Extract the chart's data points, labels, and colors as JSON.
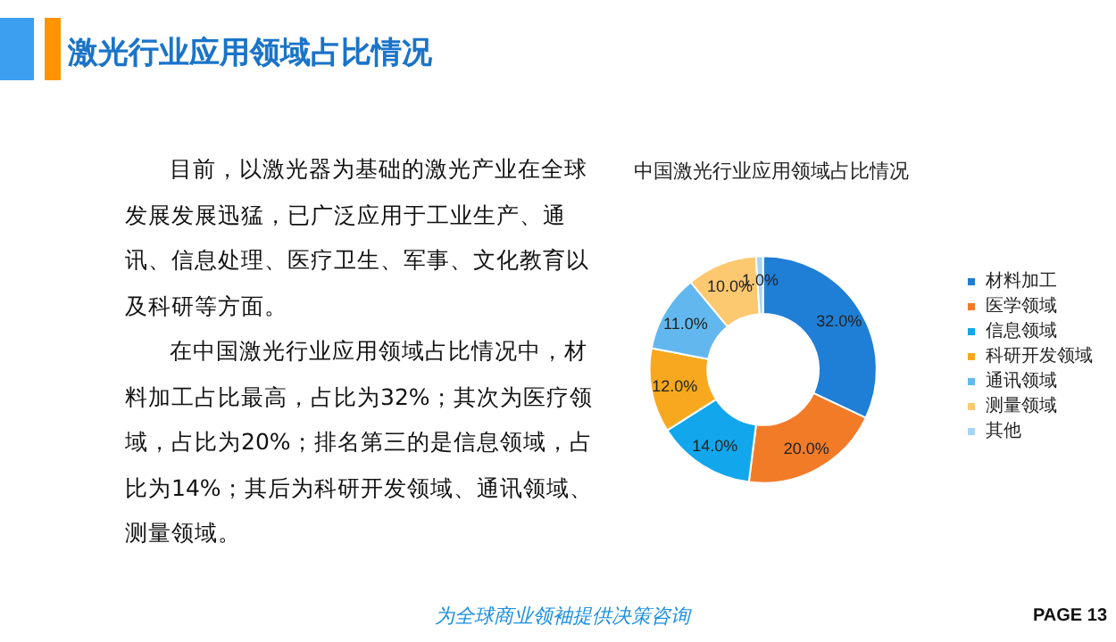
{
  "chart_data": {
    "type": "donut",
    "title": "激光行业应用领域占比情况",
    "subtitle": "中国激光行业应用领域占比情况",
    "categories": [
      "材料加工",
      "医学领域",
      "信息领域",
      "科研开发领域",
      "通讯领域",
      "测量领域",
      "其他"
    ],
    "values": [
      32,
      20,
      14,
      12,
      11,
      10,
      1
    ],
    "colors": [
      "#1f7fd6",
      "#f27b28",
      "#12a7ec",
      "#f7a81e",
      "#62b8ee",
      "#fcc870",
      "#a9d3f3"
    ],
    "value_labels": [
      "32.0%",
      "20.0%",
      "14.0%",
      "12.0%",
      "11.0%",
      "10.0%",
      "1.0%"
    ],
    "legend": "right",
    "annotations": [
      "目前，以激光器为基础的激光产业在全球发展发展迅猛，已广泛应用于工业生产、通讯、信息处理、医疗卫生、军事、文化教育以及科研等方面。",
      "在中国激光行业应用领域占比情况中，材料加工占比最高，占比为32%；其次为医疗领域，占比为20%；排名第三的是信息领域，占比为14%；其后为科研开发领域、通讯领域、测量领域。",
      "为全球商业领袖提供决策咨询",
      "PAGE 13"
    ]
  }
}
